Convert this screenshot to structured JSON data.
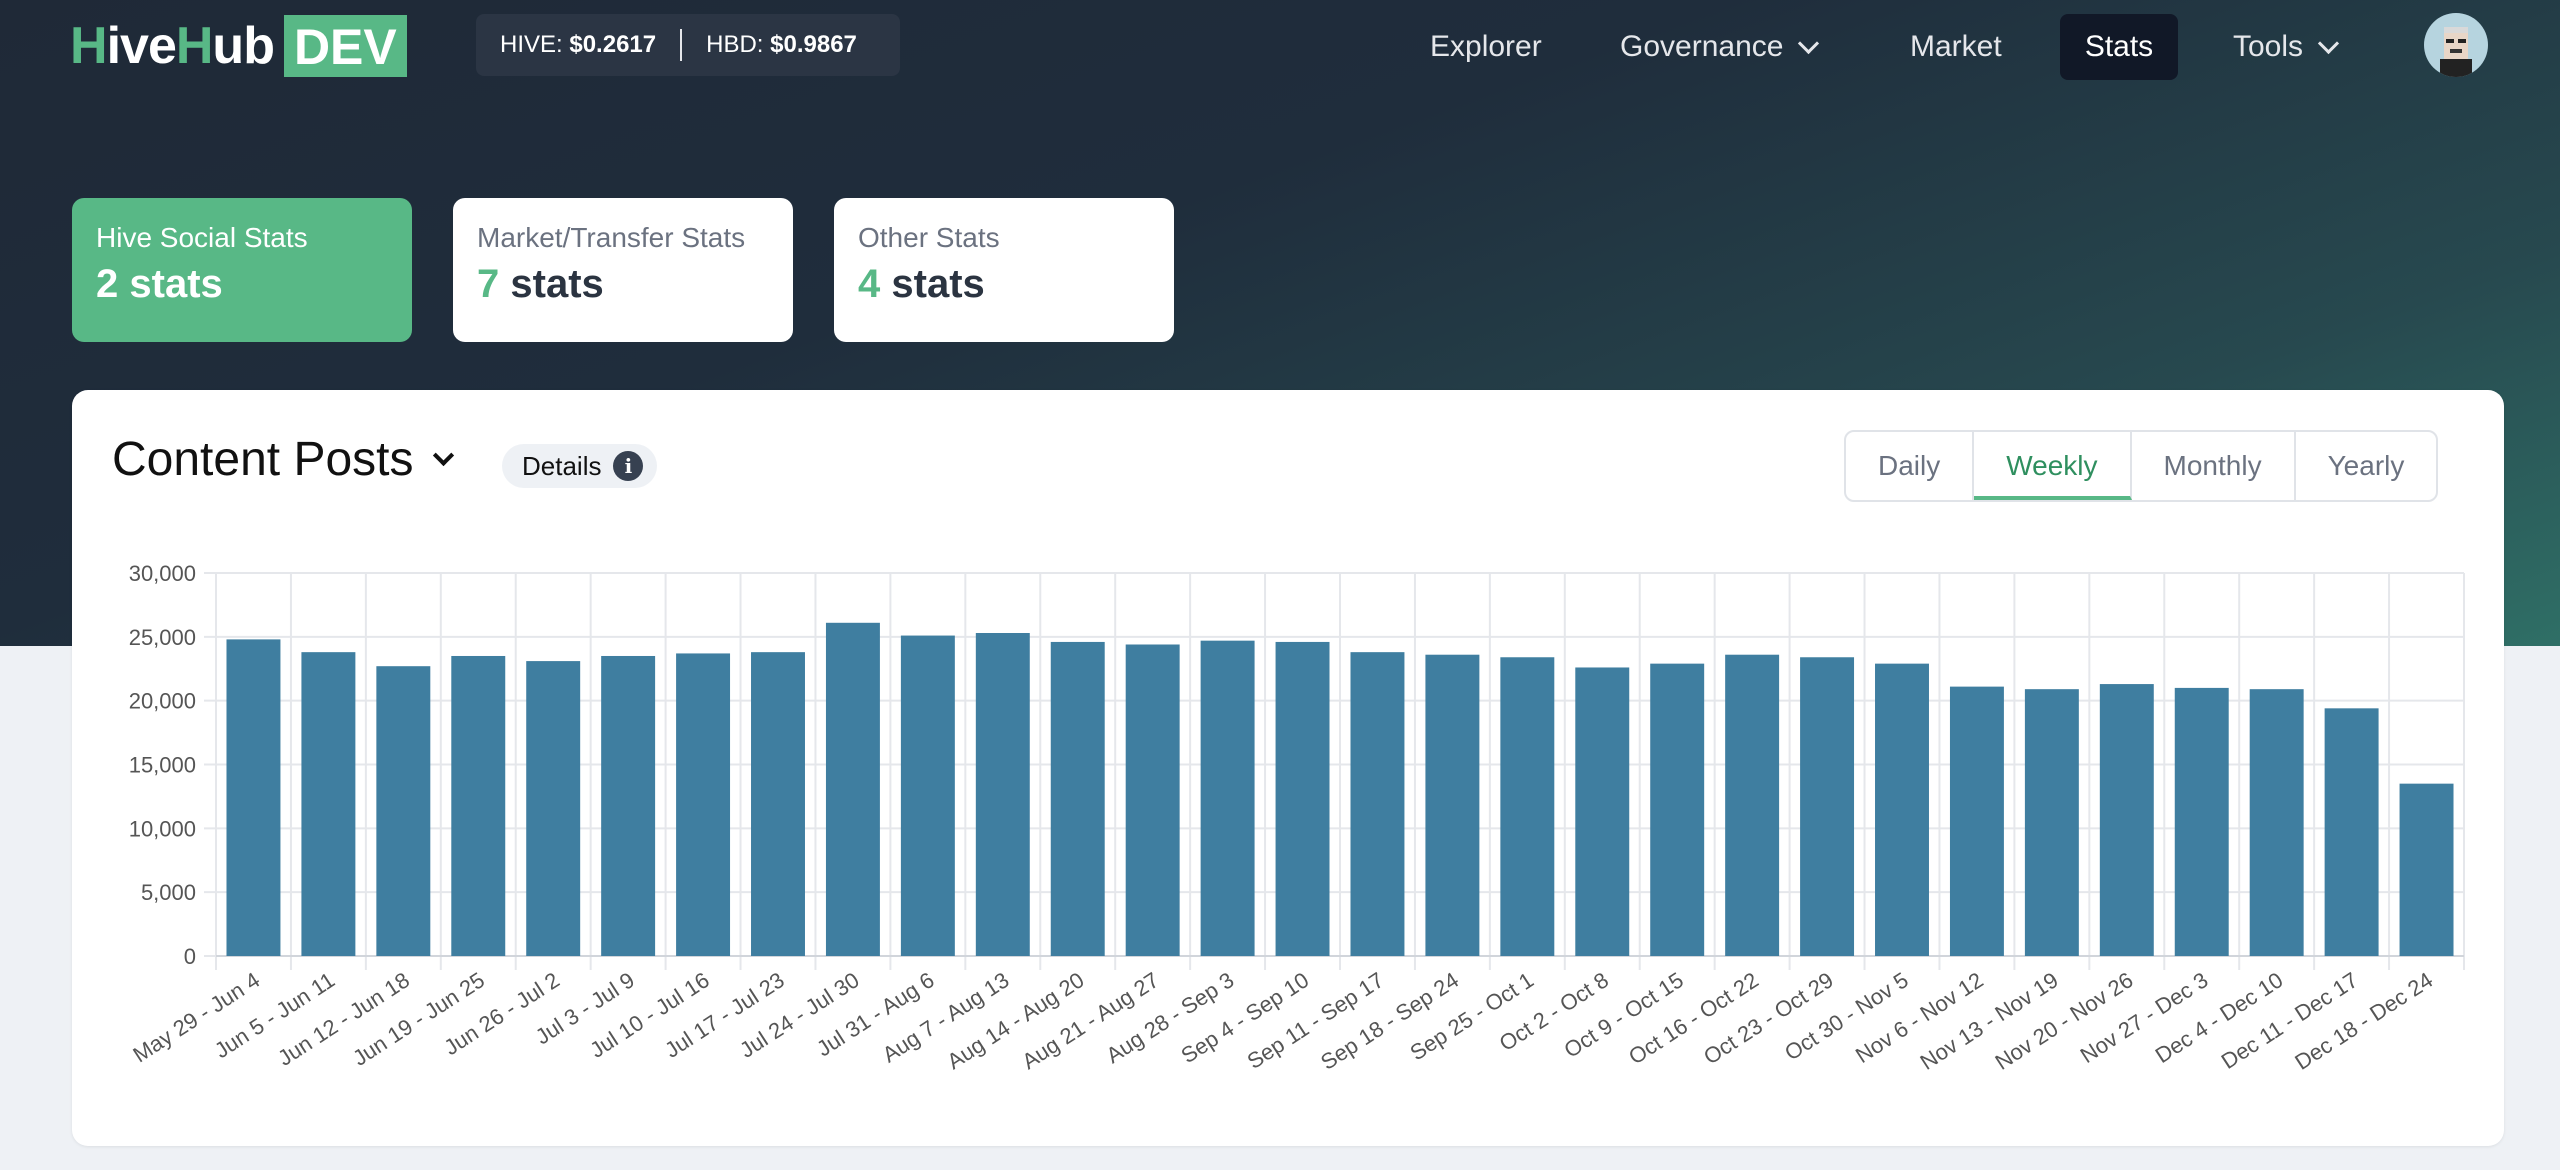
{
  "brand": {
    "logo_text": "HiveHub",
    "badge": "DEV"
  },
  "prices": {
    "hive_label": "HIVE:",
    "hive_value": "$0.2617",
    "hbd_label": "HBD:",
    "hbd_value": "$0.9867"
  },
  "nav": {
    "explorer": "Explorer",
    "governance": "Governance",
    "market": "Market",
    "stats": "Stats",
    "tools": "Tools"
  },
  "stat_groups": [
    {
      "label": "Hive Social Stats",
      "count": "2",
      "unit": "stats"
    },
    {
      "label": "Market/Transfer Stats",
      "count": "7",
      "unit": "stats"
    },
    {
      "label": "Other Stats",
      "count": "4",
      "unit": "stats"
    }
  ],
  "panel": {
    "title": "Content Posts",
    "details_label": "Details",
    "info_glyph": "i"
  },
  "period_tabs": [
    "Daily",
    "Weekly",
    "Monthly",
    "Yearly"
  ],
  "active_period": "Weekly",
  "colors": {
    "accent": "#58b886",
    "bar": "#3f7ea0"
  },
  "chart_data": {
    "type": "bar",
    "title": "",
    "xlabel": "",
    "ylabel": "",
    "ylim": [
      0,
      30000
    ],
    "yticks": [
      "30,000",
      "25,000",
      "20,000",
      "15,000",
      "10,000",
      "5,000",
      "0"
    ],
    "grid": true,
    "categories": [
      "May 29 - Jun 4",
      "Jun 5 - Jun 11",
      "Jun 12 - Jun 18",
      "Jun 19 - Jun 25",
      "Jun 26 - Jul 2",
      "Jul 3 - Jul 9",
      "Jul 10 - Jul 16",
      "Jul 17 - Jul 23",
      "Jul 24 - Jul 30",
      "Jul 31 - Aug 6",
      "Aug 7 - Aug 13",
      "Aug 14 - Aug 20",
      "Aug 21 - Aug 27",
      "Aug 28 - Sep 3",
      "Sep 4 - Sep 10",
      "Sep 11 - Sep 17",
      "Sep 18 - Sep 24",
      "Sep 25 - Oct 1",
      "Oct 2 - Oct 8",
      "Oct 9 - Oct 15",
      "Oct 16 - Oct 22",
      "Oct 23 - Oct 29",
      "Oct 30 - Nov 5",
      "Nov 6 - Nov 12",
      "Nov 13 - Nov 19",
      "Nov 20 - Nov 26",
      "Nov 27 - Dec 3",
      "Dec 4 - Dec 10",
      "Dec 11 - Dec 17",
      "Dec 18 - Dec 24"
    ],
    "values": [
      24800,
      23800,
      22700,
      23500,
      23100,
      23500,
      23700,
      23800,
      26100,
      25100,
      25300,
      24600,
      24400,
      24700,
      24600,
      23800,
      23600,
      23400,
      22600,
      22900,
      23600,
      23400,
      22900,
      21100,
      20900,
      21300,
      21000,
      20900,
      19400,
      13500
    ]
  }
}
